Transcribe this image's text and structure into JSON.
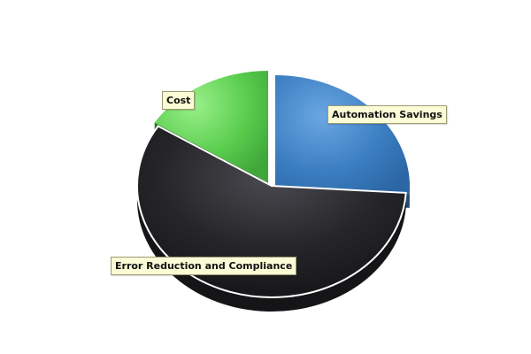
{
  "chart_data": {
    "type": "pie",
    "title": "",
    "slices": [
      {
        "label": "Automation Savings",
        "value": 26,
        "color": "#3a7dc0"
      },
      {
        "label": "Error Reduction and Compliance",
        "value": 58,
        "color": "#1e1e21"
      },
      {
        "label": "Cost",
        "value": 16,
        "color": "#4cc243"
      }
    ],
    "style": "3d-exploded",
    "legend": "none"
  }
}
